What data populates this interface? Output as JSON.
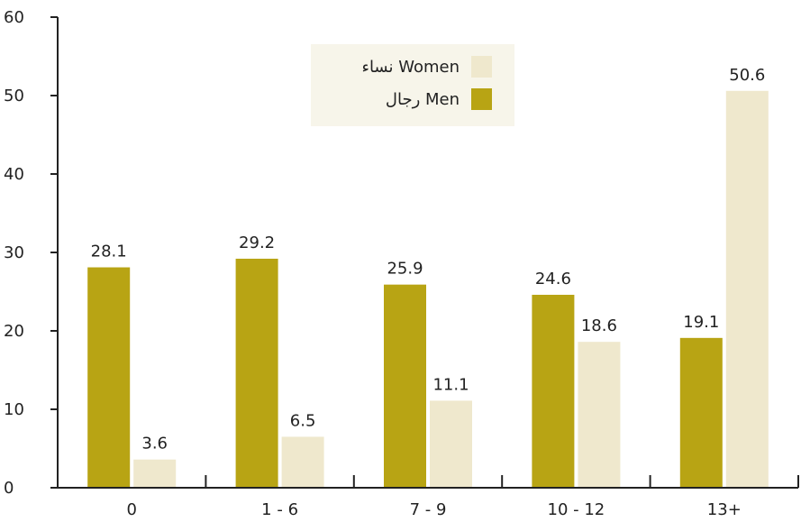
{
  "chart_data": {
    "type": "bar",
    "categories": [
      "0",
      "1 - 6",
      "7 - 9",
      "10 - 12",
      "13+"
    ],
    "series": [
      {
        "name": "رجال Men",
        "color": "#b8a414",
        "values": [
          28.1,
          29.2,
          25.9,
          24.6,
          19.1
        ]
      },
      {
        "name": "نساء Women",
        "color": "#efe8cd",
        "values": [
          3.6,
          6.5,
          11.1,
          18.6,
          50.6
        ]
      }
    ],
    "ylim": [
      0,
      60
    ],
    "yticks": [
      0,
      10,
      20,
      30,
      40,
      50,
      60
    ],
    "grid": false,
    "legend": {
      "placement": "top-center",
      "background": "#f7f5ea",
      "order": [
        "نساء Women",
        "رجال Men"
      ]
    },
    "title": "",
    "xlabel": "",
    "ylabel": ""
  }
}
